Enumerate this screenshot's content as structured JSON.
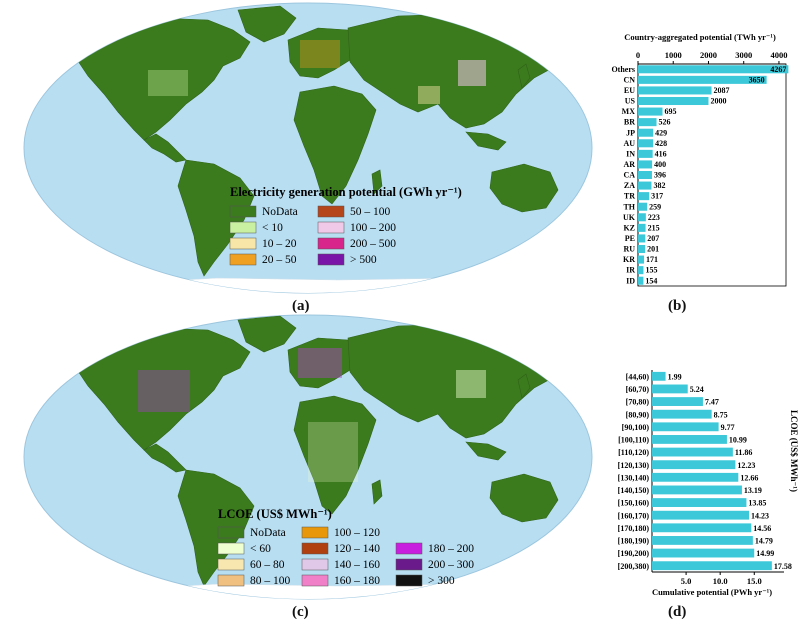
{
  "panels": {
    "a": "(a)",
    "b": "(b)",
    "c": "(c)",
    "d": "(d)"
  },
  "map_a": {
    "legend_title": "Electricity generation potential (GWh yr⁻¹)",
    "items": [
      {
        "label": "NoData",
        "color": "#3c7a1e"
      },
      {
        "label": "50 – 100",
        "color": "#b5451b"
      },
      {
        "label": "< 10",
        "color": "#c8f0a0"
      },
      {
        "label": "100 – 200",
        "color": "#f0c8e8"
      },
      {
        "label": "10 – 20",
        "color": "#f7e6a8"
      },
      {
        "label": "200 – 500",
        "color": "#d8258c"
      },
      {
        "label": "20 – 50",
        "color": "#f0a020"
      },
      {
        "label": "> 500",
        "color": "#7a14a8"
      }
    ]
  },
  "map_c": {
    "legend_title": "LCOE (US$ MWh⁻¹)",
    "items": [
      {
        "label": "NoData",
        "color": "#3c7a1e"
      },
      {
        "label": "100 – 120",
        "color": "#e8960a"
      },
      {
        "label": "180 – 200",
        "color": "#c81ee0"
      },
      {
        "label": "< 60",
        "color": "#f0ffd0"
      },
      {
        "label": "120 – 140",
        "color": "#b04010"
      },
      {
        "label": "200 – 300",
        "color": "#6a1a8a"
      },
      {
        "label": "60 – 80",
        "color": "#f8e8b0"
      },
      {
        "label": "140 – 160",
        "color": "#e0c8e8"
      },
      {
        "label": "> 300",
        "color": "#111111"
      },
      {
        "label": "80 – 100",
        "color": "#f0c080"
      },
      {
        "label": "160 – 180",
        "color": "#f080c8"
      }
    ]
  },
  "chart_data": [
    {
      "type": "bar",
      "orientation": "horizontal",
      "title": "Country-aggregated potential (TWh yr⁻¹)",
      "categories": [
        "Others",
        "CN",
        "EU",
        "US",
        "MX",
        "BR",
        "JP",
        "AU",
        "IN",
        "AR",
        "CA",
        "ZA",
        "TR",
        "TH",
        "UK",
        "KZ",
        "PE",
        "RU",
        "KR",
        "IR",
        "ID"
      ],
      "values": [
        4267,
        3650,
        2087,
        2000,
        695,
        526,
        429,
        428,
        416,
        400,
        396,
        382,
        317,
        259,
        223,
        215,
        207,
        201,
        171,
        155,
        154
      ],
      "value_labels": [
        "4267",
        "3650",
        "2087",
        "2000",
        "695",
        "526",
        "429",
        "428",
        "416",
        "400",
        "396",
        "382",
        "317",
        "259",
        "223",
        "215",
        "207",
        "201",
        "171",
        "155",
        "154"
      ],
      "xticks": [
        "0",
        "1000",
        "2000",
        "3000",
        "4000"
      ],
      "xlim": [
        0,
        4200
      ],
      "axis_position": "top",
      "color": "#3cc8d8"
    },
    {
      "type": "bar",
      "orientation": "horizontal",
      "xlabel": "Cumulative potential (PWh yr⁻¹)",
      "ylabel": "LCOE (US$ MWh⁻¹)",
      "categories": [
        "[44,60)",
        "[60,70)",
        "[70,80)",
        "[80,90)",
        "[90,100)",
        "[100,110)",
        "[110,120)",
        "[120,130)",
        "[130,140)",
        "[140,150)",
        "[150,160)",
        "[160,170)",
        "[170,180)",
        "[180,190)",
        "[190,200)",
        "[200,380)"
      ],
      "values": [
        1.99,
        5.24,
        7.47,
        8.75,
        9.77,
        10.99,
        11.86,
        12.23,
        12.66,
        13.19,
        13.85,
        14.23,
        14.56,
        14.79,
        14.99,
        17.58
      ],
      "value_labels": [
        "1.99",
        "5.24",
        "7.47",
        "8.75",
        "9.77",
        "10.99",
        "11.86",
        "12.23",
        "12.66",
        "13.19",
        "13.85",
        "14.23",
        "14.56",
        "14.79",
        "14.99",
        "17.58"
      ],
      "xticks": [
        "5.0",
        "10.0",
        "15.0"
      ],
      "xlim": [
        0,
        17.6
      ],
      "color": "#3cc8d8"
    }
  ]
}
